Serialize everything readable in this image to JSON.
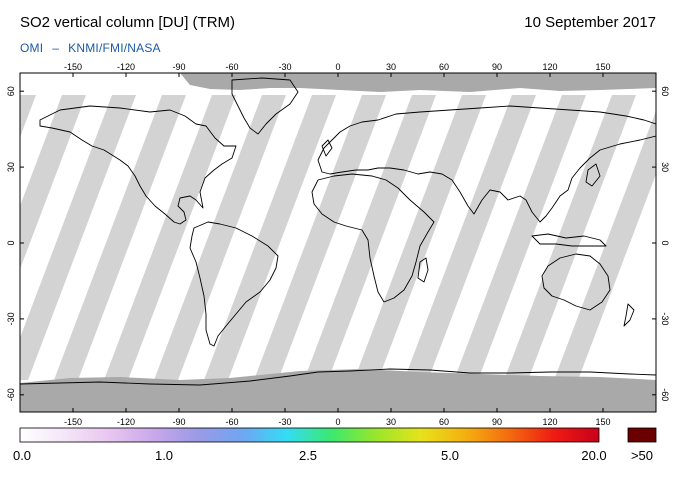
{
  "header": {
    "title": "SO2 vertical column [DU] (TRM)",
    "date": "10 September 2017",
    "credit_left": "OMI",
    "credit_sep": "–",
    "credit_right": "KNMI/FMI/NASA"
  },
  "map": {
    "lon_ticks": [
      -150,
      -120,
      -90,
      -60,
      -30,
      0,
      30,
      60,
      90,
      120,
      150
    ],
    "lat_ticks": [
      60,
      30,
      0,
      -30,
      -60
    ],
    "colors": {
      "background": "#ffffff",
      "no_data": "#a9a9a9",
      "swath_gap": "#d3d3d3",
      "coast": "#000000"
    }
  },
  "colorbar": {
    "stops": [
      "#ffffff",
      "#f4e6f7",
      "#e9c6f1",
      "#c9a8ea",
      "#9a9ae6",
      "#6fa6f2",
      "#33ddf5",
      "#3ce86e",
      "#9ae62a",
      "#e7e21c",
      "#f4b010",
      "#f36a10",
      "#ef1a14",
      "#c8001a"
    ],
    "overflow_color": "#6b0000",
    "labels": [
      "0.0",
      "1.0",
      "2.5",
      "5.0",
      "20.0"
    ],
    "overflow_label": ">50"
  }
}
